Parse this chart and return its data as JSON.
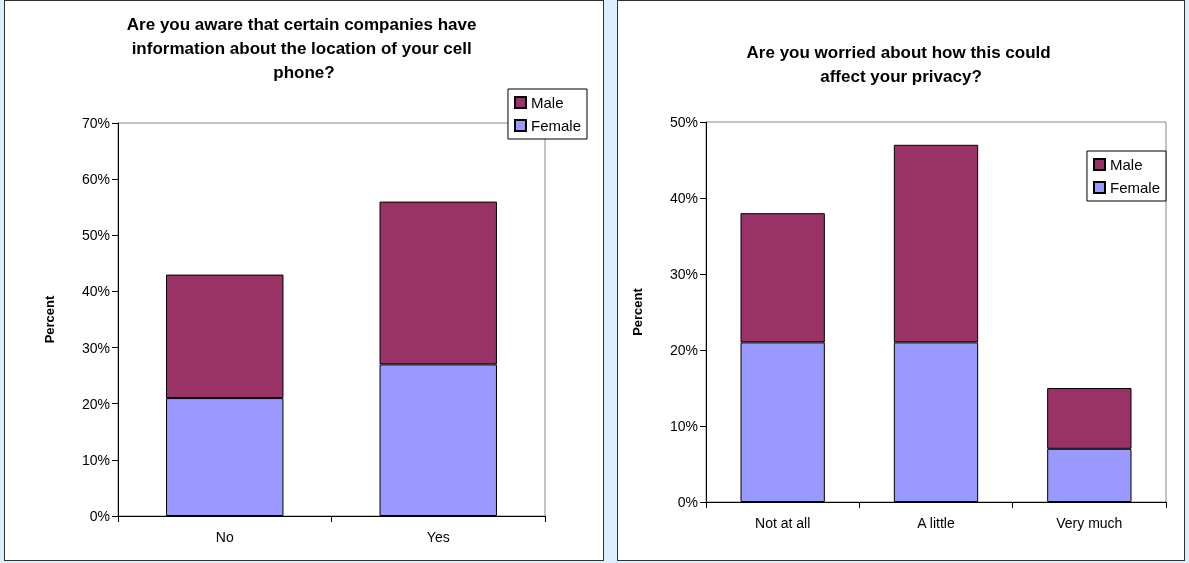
{
  "chart_data": [
    {
      "type": "bar",
      "title": "Are you aware that certain companies have information about the location of your cell phone?",
      "ylabel": "Percent",
      "categories": [
        "No",
        "Yes"
      ],
      "stacked": true,
      "legend": "top right",
      "grid": false,
      "series": [
        {
          "name": "Female",
          "color": "#9999ff",
          "values": [
            21,
            27
          ]
        },
        {
          "name": "Male",
          "color": "#993366",
          "values": [
            22,
            29
          ]
        }
      ],
      "ylim": [
        0,
        70
      ],
      "yticks": [
        {
          "value": 0,
          "label": "0%"
        },
        {
          "value": 10,
          "label": "10%"
        },
        {
          "value": 20,
          "label": "20%"
        },
        {
          "value": 30,
          "label": "30%"
        },
        {
          "value": 40,
          "label": "40%"
        },
        {
          "value": 50,
          "label": "50%"
        },
        {
          "value": 60,
          "label": "60%"
        },
        {
          "value": 70,
          "label": "70%"
        }
      ]
    },
    {
      "type": "bar",
      "title": "Are you worried about how this could affect your privacy?",
      "ylabel": "Percent",
      "categories": [
        "Not at all",
        "A little",
        "Very much"
      ],
      "stacked": true,
      "legend": "top right",
      "grid": false,
      "series": [
        {
          "name": "Female",
          "color": "#9999ff",
          "values": [
            21,
            21,
            7
          ]
        },
        {
          "name": "Male",
          "color": "#993366",
          "values": [
            17,
            26,
            8
          ]
        }
      ],
      "ylim": [
        0,
        50
      ],
      "yticks": [
        {
          "value": 0,
          "label": "0%"
        },
        {
          "value": 10,
          "label": "10%"
        },
        {
          "value": 20,
          "label": "20%"
        },
        {
          "value": 30,
          "label": "30%"
        },
        {
          "value": 40,
          "label": "40%"
        },
        {
          "value": 50,
          "label": "50%"
        }
      ]
    }
  ]
}
